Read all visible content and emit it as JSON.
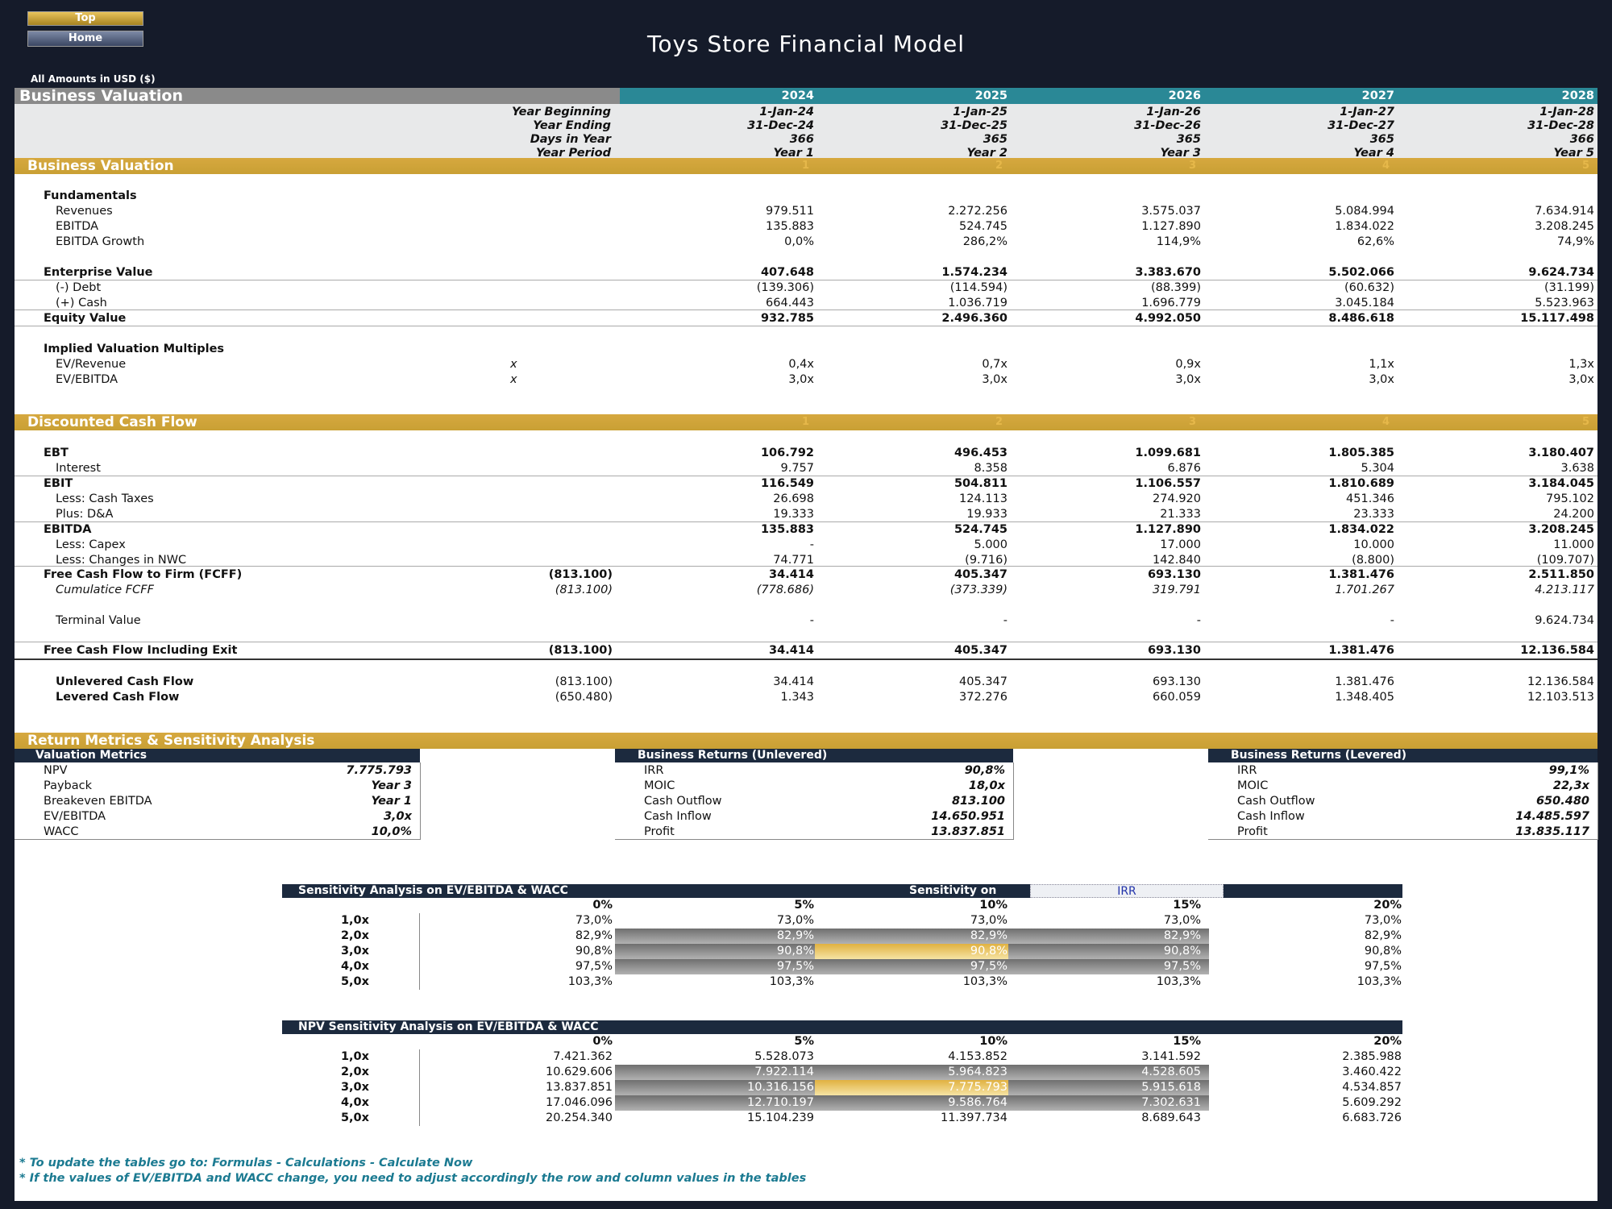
{
  "nav": {
    "top_label": "Top",
    "home_label": "Home"
  },
  "title": "Toys Store Financial Model",
  "amounts": "All Amounts in  USD ($)",
  "header": {
    "section": "Business Valuation",
    "years": [
      "2024",
      "2025",
      "2026",
      "2027",
      "2028"
    ],
    "labels": [
      "Year Beginning",
      "Year Ending",
      "Days in Year",
      "Year Period"
    ],
    "year_beginning": [
      "1-Jan-24",
      "1-Jan-25",
      "1-Jan-26",
      "1-Jan-27",
      "1-Jan-28"
    ],
    "year_ending": [
      "31-Dec-24",
      "31-Dec-25",
      "31-Dec-26",
      "31-Dec-27",
      "31-Dec-28"
    ],
    "days": [
      "366",
      "365",
      "365",
      "365",
      "366"
    ],
    "period": [
      "Year 1",
      "Year 2",
      "Year 3",
      "Year 4",
      "Year 5"
    ]
  },
  "valuation": {
    "title": "Business Valuation",
    "idx": [
      "1",
      "2",
      "3",
      "4",
      "5"
    ],
    "fundamentals": "Fundamentals",
    "rows": [
      {
        "label": "Revenues",
        "vals": [
          "979.511",
          "2.272.256",
          "3.575.037",
          "5.084.994",
          "7.634.914"
        ]
      },
      {
        "label": "EBITDA",
        "vals": [
          "135.883",
          "524.745",
          "1.127.890",
          "1.834.022",
          "3.208.245"
        ]
      },
      {
        "label": "EBITDA Growth",
        "vals": [
          "0,0%",
          "286,2%",
          "114,9%",
          "62,6%",
          "74,9%"
        ]
      }
    ],
    "ev": {
      "label": "Enterprise Value",
      "vals": [
        "407.648",
        "1.574.234",
        "3.383.670",
        "5.502.066",
        "9.624.734"
      ]
    },
    "debt": {
      "label": "(-) Debt",
      "vals": [
        "(139.306)",
        "(114.594)",
        "(88.399)",
        "(60.632)",
        "(31.199)"
      ]
    },
    "cash": {
      "label": "(+) Cash",
      "vals": [
        "664.443",
        "1.036.719",
        "1.696.779",
        "3.045.184",
        "5.523.963"
      ]
    },
    "equity": {
      "label": "Equity Value",
      "vals": [
        "932.785",
        "2.496.360",
        "4.992.050",
        "8.486.618",
        "15.117.498"
      ]
    },
    "multiples": "Implied Valuation Multiples",
    "ev_rev": {
      "label": "EV/Revenue",
      "unit": "x",
      "vals": [
        "0,4x",
        "0,7x",
        "0,9x",
        "1,1x",
        "1,3x"
      ]
    },
    "ev_ebitda": {
      "label": "EV/EBITDA",
      "unit": "x",
      "vals": [
        "3,0x",
        "3,0x",
        "3,0x",
        "3,0x",
        "3,0x"
      ]
    }
  },
  "dcf": {
    "title": "Discounted Cash Flow",
    "idx": [
      "1",
      "2",
      "3",
      "4",
      "5"
    ],
    "rows": [
      {
        "label": "EBT",
        "bold": true,
        "indent": false,
        "vals": [
          "106.792",
          "496.453",
          "1.099.681",
          "1.805.385",
          "3.180.407"
        ]
      },
      {
        "label": "Interest",
        "bold": false,
        "indent": true,
        "vals": [
          "9.757",
          "8.358",
          "6.876",
          "5.304",
          "3.638"
        ]
      },
      {
        "label": "EBIT",
        "bold": true,
        "indent": false,
        "vals": [
          "116.549",
          "504.811",
          "1.106.557",
          "1.810.689",
          "3.184.045"
        ]
      },
      {
        "label": "Less: Cash Taxes",
        "bold": false,
        "indent": true,
        "vals": [
          "26.698",
          "124.113",
          "274.920",
          "451.346",
          "795.102"
        ]
      },
      {
        "label": "Plus: D&A",
        "bold": false,
        "indent": true,
        "vals": [
          "19.333",
          "19.933",
          "21.333",
          "23.333",
          "24.200"
        ]
      },
      {
        "label": "EBITDA",
        "bold": true,
        "indent": false,
        "vals": [
          "135.883",
          "524.745",
          "1.127.890",
          "1.834.022",
          "3.208.245"
        ]
      },
      {
        "label": "Less: Capex",
        "bold": false,
        "indent": true,
        "vals": [
          "-",
          "5.000",
          "17.000",
          "10.000",
          "11.000"
        ]
      },
      {
        "label": "Less: Changes in NWC",
        "bold": false,
        "indent": true,
        "vals": [
          "74.771",
          "(9.716)",
          "142.840",
          "(8.800)",
          "(109.707)"
        ]
      }
    ],
    "fcff": {
      "label": "Free Cash Flow to Firm (FCFF)",
      "init": "(813.100)",
      "vals": [
        "34.414",
        "405.347",
        "693.130",
        "1.381.476",
        "2.511.850"
      ]
    },
    "cum": {
      "label": "Cumulatice FCFF",
      "init": "(813.100)",
      "vals": [
        "(778.686)",
        "(373.339)",
        "319.791",
        "1.701.267",
        "4.213.117"
      ]
    },
    "tv": {
      "label": "Terminal Value",
      "vals": [
        "-",
        "-",
        "-",
        "-",
        "9.624.734"
      ]
    },
    "exit": {
      "label": "Free Cash Flow Including Exit",
      "init": "(813.100)",
      "vals": [
        "34.414",
        "405.347",
        "693.130",
        "1.381.476",
        "12.136.584"
      ]
    },
    "unlev": {
      "label": "Unlevered Cash Flow",
      "init": "(813.100)",
      "vals": [
        "34.414",
        "405.347",
        "693.130",
        "1.381.476",
        "12.136.584"
      ]
    },
    "lev": {
      "label": "Levered Cash Flow",
      "init": "(650.480)",
      "vals": [
        "1.343",
        "372.276",
        "660.059",
        "1.348.405",
        "12.103.513"
      ]
    }
  },
  "returns": {
    "title": "Return Metrics & Sensitivity Analysis",
    "valuation": {
      "title": "Valuation Metrics",
      "rows": [
        [
          "NPV",
          "7.775.793"
        ],
        [
          "Payback",
          "Year 3"
        ],
        [
          "Breakeven EBITDA",
          "Year 1"
        ],
        [
          "EV/EBITDA",
          "3,0x"
        ],
        [
          "WACC",
          "10,0%"
        ]
      ]
    },
    "unlevered": {
      "title": "Business Returns (Unlevered)",
      "rows": [
        [
          "IRR",
          "90,8%"
        ],
        [
          "MOIC",
          "18,0x"
        ],
        [
          "Cash Outflow",
          "813.100"
        ],
        [
          "Cash Inflow",
          "14.650.951"
        ],
        [
          "Profit",
          "13.837.851"
        ]
      ]
    },
    "levered": {
      "title": "Business Returns (Levered)",
      "rows": [
        [
          "IRR",
          "99,1%"
        ],
        [
          "MOIC",
          "22,3x"
        ],
        [
          "Cash Outflow",
          "650.480"
        ],
        [
          "Cash Inflow",
          "14.485.597"
        ],
        [
          "Profit",
          "13.835.117"
        ]
      ]
    }
  },
  "sens1": {
    "title": "Sensitivity Analysis on EV/EBITDA & WACC",
    "on_label": "Sensitivity on",
    "on_value": "IRR",
    "cols": [
      "0%",
      "5%",
      "10%",
      "15%",
      "20%"
    ],
    "rows": [
      {
        "label": "1,0x",
        "vals": [
          "73,0%",
          "73,0%",
          "73,0%",
          "73,0%",
          "73,0%"
        ]
      },
      {
        "label": "2,0x",
        "vals": [
          "82,9%",
          "82,9%",
          "82,9%",
          "82,9%",
          "82,9%"
        ]
      },
      {
        "label": "3,0x",
        "vals": [
          "90,8%",
          "90,8%",
          "90,8%",
          "90,8%",
          "90,8%"
        ]
      },
      {
        "label": "4,0x",
        "vals": [
          "97,5%",
          "97,5%",
          "97,5%",
          "97,5%",
          "97,5%"
        ]
      },
      {
        "label": "5,0x",
        "vals": [
          "103,3%",
          "103,3%",
          "103,3%",
          "103,3%",
          "103,3%"
        ]
      }
    ]
  },
  "sens2": {
    "title": "NPV Sensitivity Analysis on EV/EBITDA & WACC",
    "cols": [
      "0%",
      "5%",
      "10%",
      "15%",
      "20%"
    ],
    "rows": [
      {
        "label": "1,0x",
        "vals": [
          "7.421.362",
          "5.528.073",
          "4.153.852",
          "3.141.592",
          "2.385.988"
        ]
      },
      {
        "label": "2,0x",
        "vals": [
          "10.629.606",
          "7.922.114",
          "5.964.823",
          "4.528.605",
          "3.460.422"
        ]
      },
      {
        "label": "3,0x",
        "vals": [
          "13.837.851",
          "10.316.156",
          "7.775.793",
          "5.915.618",
          "4.534.857"
        ]
      },
      {
        "label": "4,0x",
        "vals": [
          "17.046.096",
          "12.710.197",
          "9.586.764",
          "7.302.631",
          "5.609.292"
        ]
      },
      {
        "label": "5,0x",
        "vals": [
          "20.254.340",
          "15.104.239",
          "11.397.734",
          "8.689.643",
          "6.683.726"
        ]
      }
    ]
  },
  "notes": [
    "* To update the tables go to: Formulas - Calculations - Calculate Now",
    "* If the values of EV/EBITDA and WACC change, you need to adjust accordingly the row and column values in the tables"
  ]
}
